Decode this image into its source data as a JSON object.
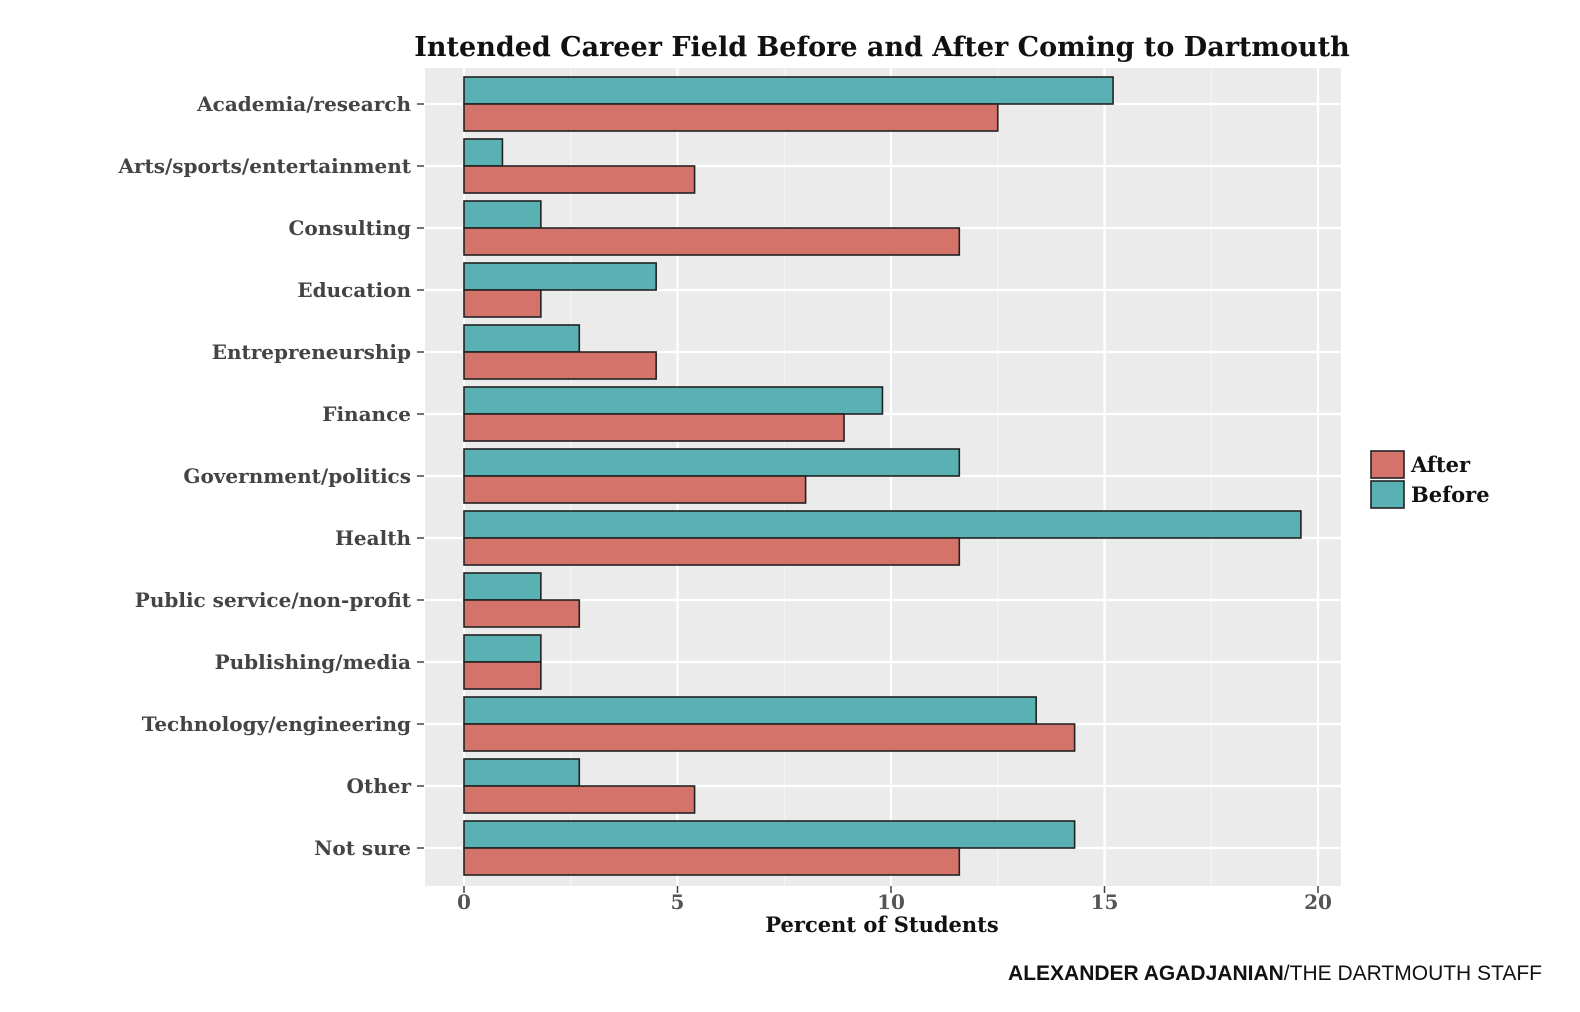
{
  "chart_data": {
    "type": "bar",
    "orientation": "horizontal",
    "title": "Intended Career Field Before and After Coming to Dartmouth",
    "xlabel": "Percent of Students",
    "ylabel": "",
    "xlim": [
      0,
      21
    ],
    "xticks": [
      0,
      5,
      10,
      15,
      20
    ],
    "grid": true,
    "legend_position": "right",
    "categories": [
      "Academia/research",
      "Arts/sports/entertainment",
      "Consulting",
      "Education",
      "Entrepreneurship",
      "Finance",
      "Government/politics",
      "Health",
      "Public service/non-profit",
      "Publishing/media",
      "Technology/engineering",
      "Other",
      "Not sure"
    ],
    "series": [
      {
        "name": "After",
        "color": "#d4736a",
        "values": [
          12.5,
          5.4,
          11.6,
          1.8,
          4.5,
          8.9,
          8.0,
          11.6,
          2.7,
          1.8,
          14.3,
          5.4,
          11.6
        ]
      },
      {
        "name": "Before",
        "color": "#5ab1b3",
        "values": [
          15.2,
          0.9,
          1.8,
          4.5,
          2.7,
          9.8,
          11.6,
          19.6,
          1.8,
          1.8,
          13.4,
          2.7,
          14.3
        ]
      }
    ]
  },
  "credit": {
    "author": "ALEXANDER AGADJANIAN",
    "organization": "/THE DARTMOUTH STAFF"
  }
}
